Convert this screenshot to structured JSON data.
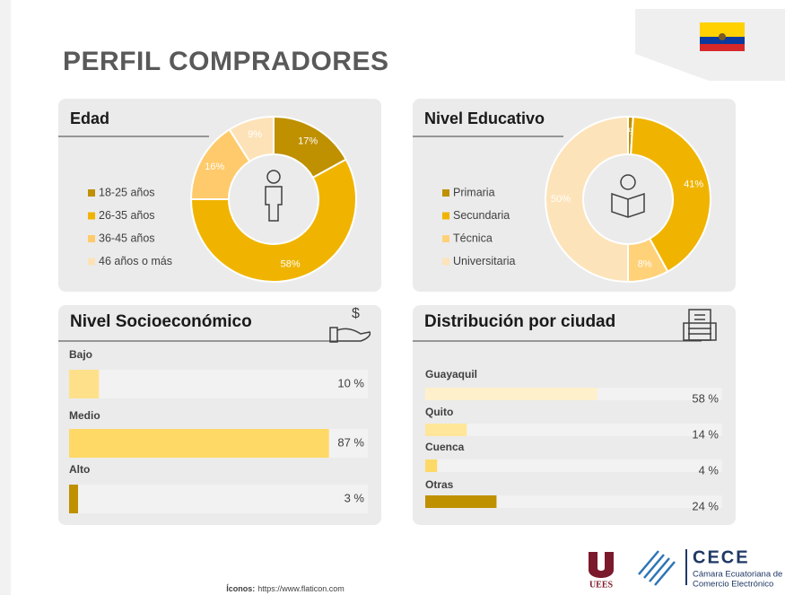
{
  "title": "PERFIL COMPRADORES",
  "chart_data": [
    {
      "type": "donut",
      "title": "Edad",
      "categories": [
        "18-25 años",
        "26-35 años",
        "36-45 años",
        "46 años o más"
      ],
      "values": [
        17,
        58,
        16,
        9
      ],
      "value_labels": [
        "17%",
        "58%",
        "16%",
        "9%"
      ],
      "colors": [
        "#bf9000",
        "#f0b400",
        "#ffca6b",
        "#fde2b8"
      ]
    },
    {
      "type": "donut",
      "title": "Nivel Educativo",
      "categories": [
        "Primaria",
        "Secundaria",
        "Técnica",
        "Universitaria"
      ],
      "values": [
        1,
        41,
        8,
        50
      ],
      "value_labels": [
        "1%",
        "41%",
        "8%",
        "50%"
      ],
      "colors": [
        "#bf9000",
        "#f0b400",
        "#ffd27a",
        "#fde3b9"
      ]
    },
    {
      "type": "bar",
      "orientation": "horizontal",
      "title": "Nivel Socioeconómico",
      "categories": [
        "Bajo",
        "Medio",
        "Alto"
      ],
      "values": [
        10,
        87,
        3
      ],
      "value_labels": [
        "10 %",
        "87 %",
        "3 %"
      ],
      "colors": [
        "#ffe08a",
        "#ffd966",
        "#bf9000"
      ],
      "xlim": [
        0,
        100
      ]
    },
    {
      "type": "bar",
      "orientation": "horizontal",
      "title": "Distribución por ciudad",
      "categories": [
        "Guayaquil",
        "Quito",
        "Cuenca",
        "Otras"
      ],
      "values": [
        58,
        14,
        4,
        24
      ],
      "value_labels": [
        "58 %",
        "14 %",
        "4 %",
        "24 %"
      ],
      "colors": [
        "#fff0cc",
        "#ffe699",
        "#ffd966",
        "#bf9000"
      ],
      "xlim": [
        0,
        100
      ]
    }
  ],
  "footer": {
    "label": "Íconos:",
    "url": "https://www.flaticon.com"
  },
  "logos": {
    "uees": "UEES",
    "cece": "CECE",
    "cece_line1": "Cámara Ecuatoriana de",
    "cece_line2": "Comercio Electrónico"
  }
}
